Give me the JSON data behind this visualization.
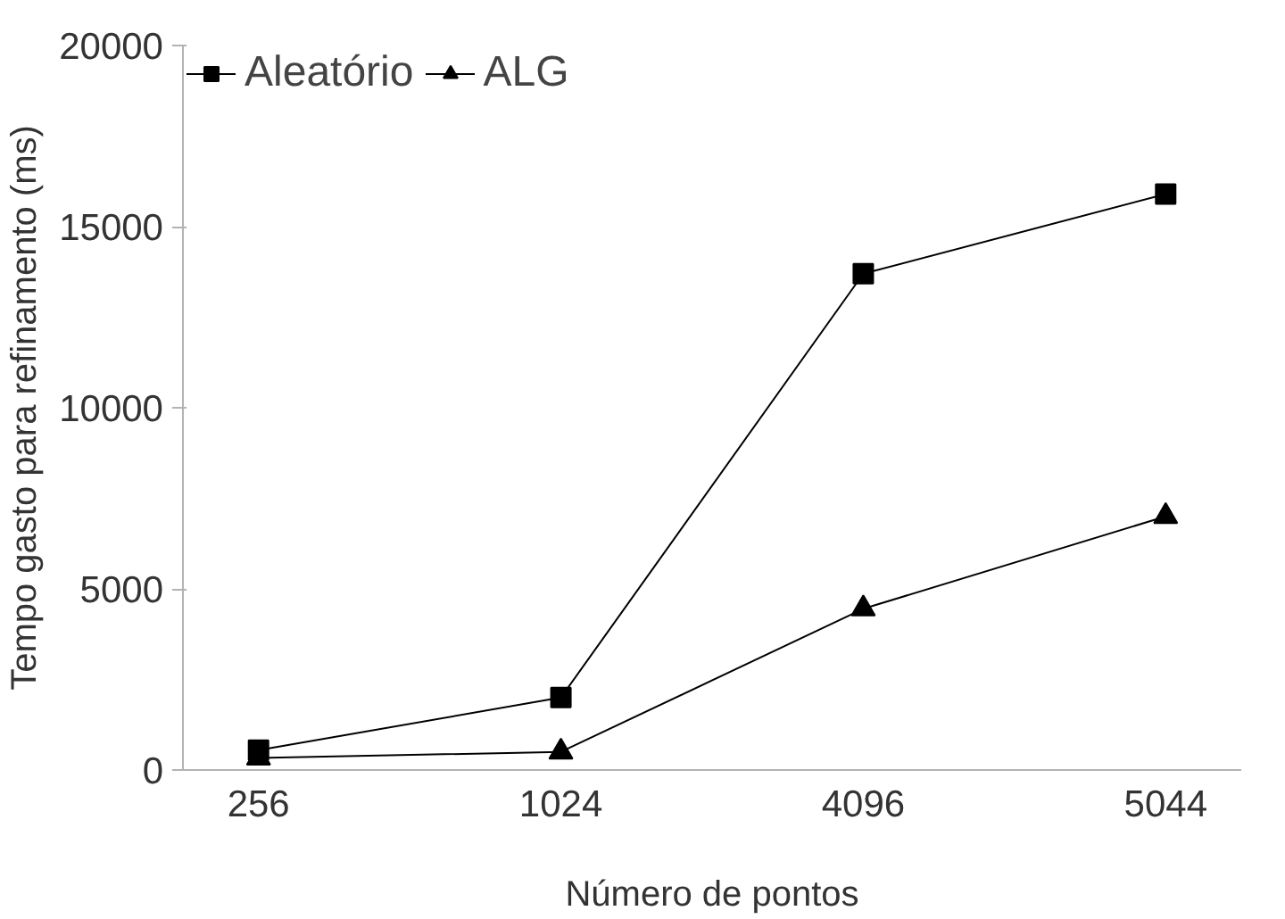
{
  "chart_data": {
    "type": "line",
    "xlabel": "Número de pontos",
    "ylabel": "Tempo gasto para refinamento (ms)",
    "categories": [
      "256",
      "1024",
      "4096",
      "5044"
    ],
    "series": [
      {
        "name": "Aleatório",
        "color": "#000000",
        "marker": "square",
        "values": [
          550,
          2000,
          13700,
          15900
        ]
      },
      {
        "name": "ALG",
        "color": "#000000",
        "marker": "triangle",
        "values": [
          330,
          500,
          4450,
          7000
        ]
      }
    ],
    "ylim": [
      0,
      20000
    ],
    "yticks": [
      0,
      5000,
      10000,
      15000,
      20000
    ],
    "grid": false,
    "legend": "top left",
    "line_style": "solid"
  }
}
